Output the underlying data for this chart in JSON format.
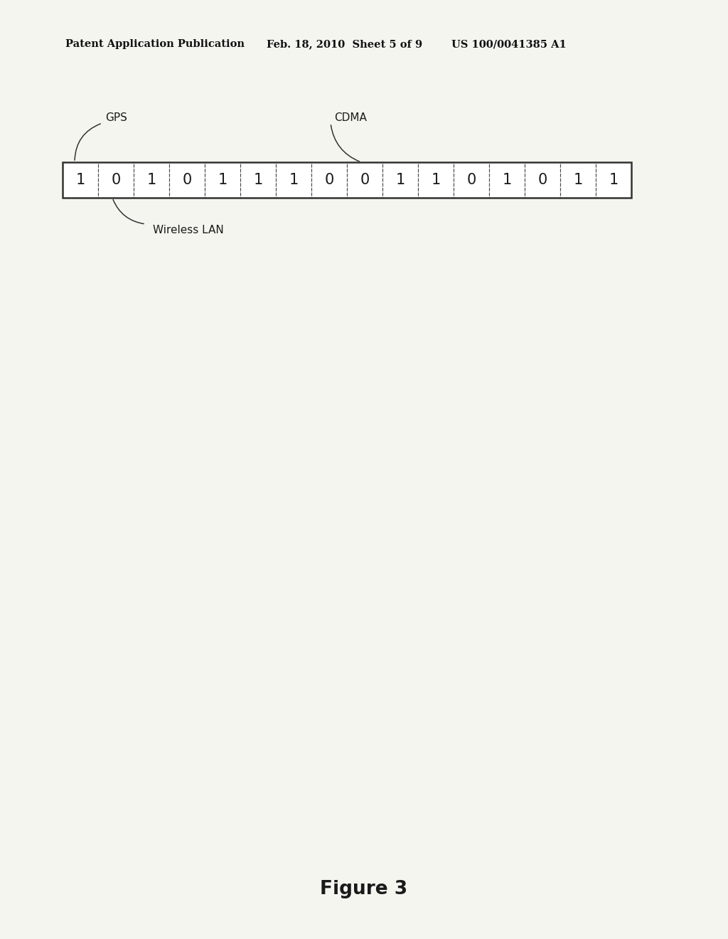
{
  "title": "Figure 3",
  "header_left": "Patent Application Publication",
  "header_mid": "Feb. 18, 2010  Sheet 5 of 9",
  "header_right": "US 100/0041385 A1",
  "bits": [
    "1",
    "0",
    "1",
    "0",
    "1",
    "1",
    "1",
    "0",
    "0",
    "1",
    "1",
    "0",
    "1",
    "0",
    "1",
    "1"
  ],
  "gps_bit_index": 0,
  "wireless_lan_bit_index": 1,
  "cdma_bit_index": 8,
  "label_gps": "GPS",
  "label_wireless_lan": "Wireless LAN",
  "label_cdma": "CDMA",
  "bg_color": "#f5f5f0",
  "box_edge_color": "#444444",
  "text_color": "#1a1a1a",
  "header_color": "#111111"
}
